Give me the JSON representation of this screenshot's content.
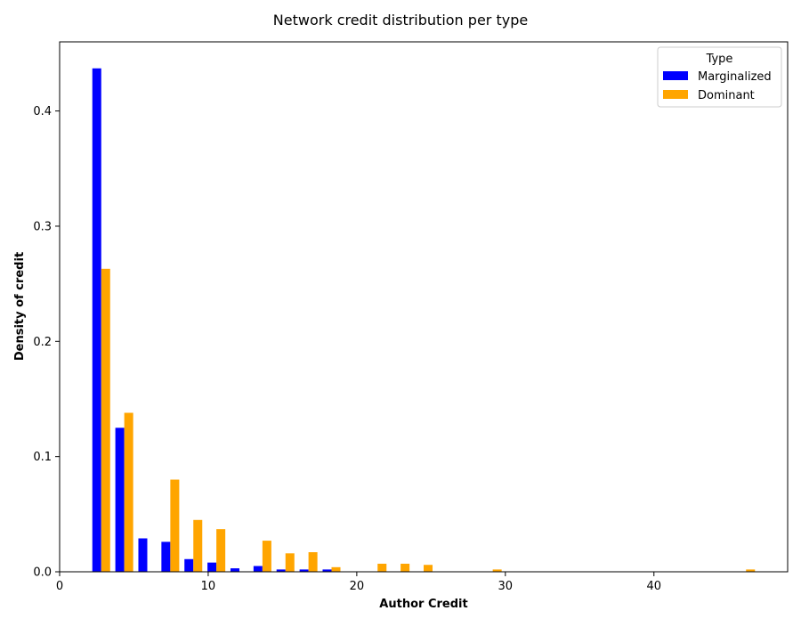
{
  "chart_data": {
    "type": "bar",
    "title": "Network credit distribution per type",
    "xlabel": "Author Credit",
    "ylabel": "Density of credit",
    "xlim": [
      0,
      49
    ],
    "ylim": [
      0,
      0.46
    ],
    "x_ticks": [
      0,
      10,
      20,
      30,
      40
    ],
    "y_ticks": [
      0.0,
      0.1,
      0.2,
      0.3,
      0.4
    ],
    "bar_width": 0.6,
    "grid": false,
    "legend": {
      "title": "Type",
      "placement": "top-right"
    },
    "series": [
      {
        "name": "Marginalized",
        "color": "#0000ff",
        "x": [
          2.5,
          4.05,
          5.6,
          7.15,
          8.7,
          10.25,
          11.8,
          13.35,
          14.9,
          16.45,
          18.0
        ],
        "values": [
          0.437,
          0.125,
          0.029,
          0.026,
          0.011,
          0.008,
          0.003,
          0.005,
          0.002,
          0.002,
          0.002
        ]
      },
      {
        "name": "Dominant",
        "color": "#ffa500",
        "x": [
          3.1,
          4.65,
          7.75,
          9.3,
          10.85,
          13.95,
          15.5,
          17.05,
          18.6,
          21.7,
          23.25,
          24.8,
          29.45,
          46.5
        ],
        "values": [
          0.263,
          0.138,
          0.08,
          0.045,
          0.037,
          0.027,
          0.016,
          0.017,
          0.004,
          0.007,
          0.007,
          0.006,
          0.002,
          0.002
        ]
      }
    ]
  }
}
